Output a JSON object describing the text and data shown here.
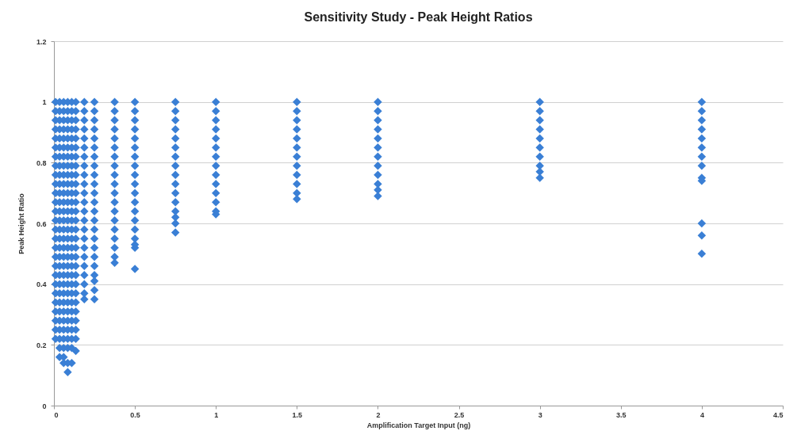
{
  "chart_data": {
    "type": "scatter",
    "title": "Sensitivity Study - Peak Height Ratios",
    "xlabel": "Amplification Target Input (ng)",
    "ylabel": "Peak Height Ratio",
    "xlim": [
      0,
      4.5
    ],
    "xticks": [
      0,
      0.5,
      1,
      1.5,
      2,
      2.5,
      3,
      3.5,
      4,
      4.5
    ],
    "ylim": [
      0,
      1.2
    ],
    "yticks": [
      0,
      0.2,
      0.4,
      0.6,
      0.8,
      1,
      1.2
    ],
    "grid": "y",
    "marker": "diamond",
    "series": [
      {
        "color": "#3a7fd5",
        "x": [
          0.01,
          0.01,
          0.01,
          0.01,
          0.01,
          0.01,
          0.01,
          0.01,
          0.01,
          0.01,
          0.01,
          0.01,
          0.01,
          0.01,
          0.01,
          0.01,
          0.01,
          0.01,
          0.01,
          0.01,
          0.01,
          0.01,
          0.01,
          0.01,
          0.01,
          0.01,
          0.01
        ],
        "values": [
          1,
          0.97,
          0.94,
          0.91,
          0.88,
          0.85,
          0.82,
          0.79,
          0.76,
          0.73,
          0.7,
          0.67,
          0.64,
          0.61,
          0.58,
          0.55,
          0.52,
          0.49,
          0.46,
          0.43,
          0.4,
          0.37,
          0.34,
          0.31,
          0.28,
          0.25,
          0.22
        ]
      },
      {
        "color": "#3a7fd5",
        "x": [
          0.035,
          0.035,
          0.035,
          0.035,
          0.035,
          0.035,
          0.035,
          0.035,
          0.035,
          0.035,
          0.035,
          0.035,
          0.035,
          0.035,
          0.035,
          0.035,
          0.035,
          0.035,
          0.035,
          0.035,
          0.035,
          0.035,
          0.035,
          0.035,
          0.035,
          0.035,
          0.035,
          0.035,
          0.035
        ],
        "values": [
          1,
          0.97,
          0.94,
          0.91,
          0.88,
          0.85,
          0.82,
          0.79,
          0.76,
          0.73,
          0.7,
          0.67,
          0.64,
          0.61,
          0.58,
          0.55,
          0.52,
          0.49,
          0.46,
          0.43,
          0.4,
          0.37,
          0.34,
          0.31,
          0.28,
          0.25,
          0.22,
          0.19,
          0.16
        ]
      },
      {
        "color": "#3a7fd5",
        "x": [
          0.06,
          0.06,
          0.06,
          0.06,
          0.06,
          0.06,
          0.06,
          0.06,
          0.06,
          0.06,
          0.06,
          0.06,
          0.06,
          0.06,
          0.06,
          0.06,
          0.06,
          0.06,
          0.06,
          0.06,
          0.06,
          0.06,
          0.06,
          0.06,
          0.06,
          0.06,
          0.06,
          0.06,
          0.06,
          0.06
        ],
        "values": [
          1,
          0.97,
          0.94,
          0.91,
          0.88,
          0.85,
          0.82,
          0.79,
          0.76,
          0.73,
          0.7,
          0.67,
          0.64,
          0.61,
          0.58,
          0.55,
          0.52,
          0.49,
          0.46,
          0.43,
          0.4,
          0.37,
          0.34,
          0.31,
          0.28,
          0.25,
          0.22,
          0.19,
          0.16,
          0.14
        ]
      },
      {
        "color": "#3a7fd5",
        "x": [
          0.085,
          0.085,
          0.085,
          0.085,
          0.085,
          0.085,
          0.085,
          0.085,
          0.085,
          0.085,
          0.085,
          0.085,
          0.085,
          0.085,
          0.085,
          0.085,
          0.085,
          0.085,
          0.085,
          0.085,
          0.085,
          0.085,
          0.085,
          0.085,
          0.085,
          0.085,
          0.085,
          0.085,
          0.085,
          0.085
        ],
        "values": [
          1,
          0.97,
          0.94,
          0.91,
          0.88,
          0.85,
          0.82,
          0.79,
          0.76,
          0.73,
          0.7,
          0.67,
          0.64,
          0.61,
          0.58,
          0.55,
          0.52,
          0.49,
          0.46,
          0.43,
          0.4,
          0.37,
          0.34,
          0.31,
          0.28,
          0.25,
          0.22,
          0.19,
          0.14,
          0.11
        ]
      },
      {
        "color": "#3a7fd5",
        "x": [
          0.11,
          0.11,
          0.11,
          0.11,
          0.11,
          0.11,
          0.11,
          0.11,
          0.11,
          0.11,
          0.11,
          0.11,
          0.11,
          0.11,
          0.11,
          0.11,
          0.11,
          0.11,
          0.11,
          0.11,
          0.11,
          0.11,
          0.11,
          0.11,
          0.11,
          0.11,
          0.11,
          0.11,
          0.11
        ],
        "values": [
          1,
          0.97,
          0.94,
          0.91,
          0.88,
          0.85,
          0.82,
          0.79,
          0.76,
          0.73,
          0.7,
          0.67,
          0.64,
          0.61,
          0.58,
          0.55,
          0.52,
          0.49,
          0.46,
          0.43,
          0.4,
          0.37,
          0.34,
          0.31,
          0.28,
          0.25,
          0.22,
          0.19,
          0.14
        ]
      },
      {
        "color": "#3a7fd5",
        "x": [
          0.135,
          0.135,
          0.135,
          0.135,
          0.135,
          0.135,
          0.135,
          0.135,
          0.135,
          0.135,
          0.135,
          0.135,
          0.135,
          0.135,
          0.135,
          0.135,
          0.135,
          0.135,
          0.135,
          0.135,
          0.135,
          0.135,
          0.135,
          0.135,
          0.135,
          0.135,
          0.135,
          0.135
        ],
        "values": [
          1,
          0.97,
          0.94,
          0.91,
          0.88,
          0.85,
          0.82,
          0.79,
          0.76,
          0.73,
          0.7,
          0.67,
          0.64,
          0.61,
          0.58,
          0.55,
          0.52,
          0.49,
          0.46,
          0.43,
          0.4,
          0.37,
          0.34,
          0.31,
          0.28,
          0.25,
          0.22,
          0.18
        ]
      },
      {
        "color": "#3a7fd5",
        "x": [
          0.1875,
          0.1875,
          0.1875,
          0.1875,
          0.1875,
          0.1875,
          0.1875,
          0.1875,
          0.1875,
          0.1875,
          0.1875,
          0.1875,
          0.1875,
          0.1875,
          0.1875,
          0.1875,
          0.1875,
          0.1875,
          0.1875,
          0.1875,
          0.1875,
          0.1875,
          0.1875
        ],
        "values": [
          1,
          0.97,
          0.94,
          0.91,
          0.88,
          0.85,
          0.82,
          0.79,
          0.76,
          0.73,
          0.7,
          0.67,
          0.64,
          0.61,
          0.58,
          0.55,
          0.52,
          0.49,
          0.46,
          0.43,
          0.4,
          0.37,
          0.35
        ]
      },
      {
        "color": "#3a7fd5",
        "x": [
          0.25,
          0.25,
          0.25,
          0.25,
          0.25,
          0.25,
          0.25,
          0.25,
          0.25,
          0.25,
          0.25,
          0.25,
          0.25,
          0.25,
          0.25,
          0.25,
          0.25,
          0.25,
          0.25,
          0.25,
          0.25,
          0.25,
          0.25
        ],
        "values": [
          1,
          0.97,
          0.94,
          0.91,
          0.88,
          0.85,
          0.82,
          0.79,
          0.76,
          0.73,
          0.7,
          0.67,
          0.64,
          0.61,
          0.58,
          0.55,
          0.52,
          0.49,
          0.46,
          0.43,
          0.41,
          0.38,
          0.35
        ]
      },
      {
        "color": "#3a7fd5",
        "x": [
          0.375,
          0.375,
          0.375,
          0.375,
          0.375,
          0.375,
          0.375,
          0.375,
          0.375,
          0.375,
          0.375,
          0.375,
          0.375,
          0.375,
          0.375,
          0.375,
          0.375,
          0.375,
          0.375
        ],
        "values": [
          1,
          0.97,
          0.94,
          0.91,
          0.88,
          0.85,
          0.82,
          0.79,
          0.76,
          0.73,
          0.7,
          0.67,
          0.64,
          0.61,
          0.58,
          0.55,
          0.52,
          0.49,
          0.47
        ]
      },
      {
        "color": "#3a7fd5",
        "x": [
          0.5,
          0.5,
          0.5,
          0.5,
          0.5,
          0.5,
          0.5,
          0.5,
          0.5,
          0.5,
          0.5,
          0.5,
          0.5,
          0.5,
          0.5,
          0.5,
          0.5,
          0.5,
          0.5
        ],
        "values": [
          1,
          0.97,
          0.94,
          0.91,
          0.88,
          0.85,
          0.82,
          0.79,
          0.76,
          0.73,
          0.7,
          0.67,
          0.64,
          0.61,
          0.58,
          0.55,
          0.53,
          0.52,
          0.45
        ]
      },
      {
        "color": "#3a7fd5",
        "x": [
          0.75,
          0.75,
          0.75,
          0.75,
          0.75,
          0.75,
          0.75,
          0.75,
          0.75,
          0.75,
          0.75,
          0.75,
          0.75,
          0.75,
          0.75,
          0.75
        ],
        "values": [
          1,
          0.97,
          0.94,
          0.91,
          0.88,
          0.85,
          0.82,
          0.79,
          0.76,
          0.73,
          0.7,
          0.67,
          0.64,
          0.62,
          0.6,
          0.57
        ]
      },
      {
        "color": "#3a7fd5",
        "x": [
          1,
          1,
          1,
          1,
          1,
          1,
          1,
          1,
          1,
          1,
          1,
          1,
          1,
          1
        ],
        "values": [
          1,
          0.97,
          0.94,
          0.91,
          0.88,
          0.85,
          0.82,
          0.79,
          0.76,
          0.73,
          0.7,
          0.67,
          0.64,
          0.63
        ]
      },
      {
        "color": "#3a7fd5",
        "x": [
          1.5,
          1.5,
          1.5,
          1.5,
          1.5,
          1.5,
          1.5,
          1.5,
          1.5,
          1.5,
          1.5,
          1.5
        ],
        "values": [
          1,
          0.97,
          0.94,
          0.91,
          0.88,
          0.85,
          0.82,
          0.79,
          0.76,
          0.73,
          0.7,
          0.68
        ]
      },
      {
        "color": "#3a7fd5",
        "x": [
          2,
          2,
          2,
          2,
          2,
          2,
          2,
          2,
          2,
          2,
          2,
          2
        ],
        "values": [
          1,
          0.97,
          0.94,
          0.91,
          0.88,
          0.85,
          0.82,
          0.79,
          0.76,
          0.73,
          0.71,
          0.69
        ]
      },
      {
        "color": "#3a7fd5",
        "x": [
          3,
          3,
          3,
          3,
          3,
          3,
          3,
          3,
          3,
          3
        ],
        "values": [
          1,
          0.97,
          0.94,
          0.91,
          0.88,
          0.85,
          0.82,
          0.79,
          0.77,
          0.75
        ]
      },
      {
        "color": "#3a7fd5",
        "x": [
          4,
          4,
          4,
          4,
          4,
          4,
          4,
          4,
          4,
          4,
          4,
          4,
          4
        ],
        "values": [
          1,
          0.97,
          0.94,
          0.91,
          0.88,
          0.85,
          0.82,
          0.79,
          0.75,
          0.74,
          0.6,
          0.56,
          0.5
        ]
      }
    ]
  }
}
